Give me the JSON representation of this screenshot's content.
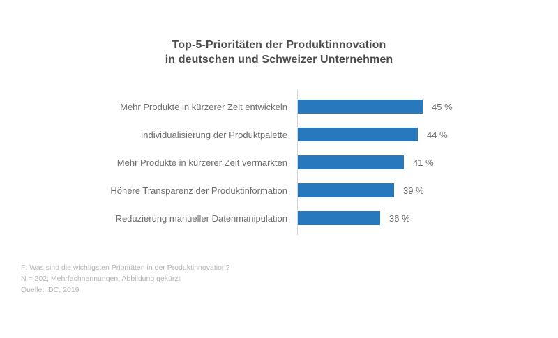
{
  "chart_data": {
    "type": "bar",
    "orientation": "horizontal",
    "title": "Top-5-Prioritäten der Produktinnovation in deutschen und Schweizer Unternehmen",
    "title_lines": [
      "Top-5-Prioritäten der Produktinnovation",
      "in deutschen und Schweizer Unternehmen"
    ],
    "categories": [
      "Mehr Produkte in kürzerer Zeit entwickeln",
      "Individualisierung der Produktpalette",
      "Mehr Produkte in kürzerer Zeit vermarkten",
      "Höhere Transparenz der Produktinformation",
      "Reduzierung manueller Datenmanipulation"
    ],
    "values": [
      45,
      44,
      41,
      39,
      36
    ],
    "value_labels": [
      "45 %",
      "44 %",
      "41 %",
      "39 %",
      "36 %"
    ],
    "unit": "%",
    "bar_color": "#2878be",
    "axis_baseline_color": "#d6d6d6",
    "xlabel": "",
    "ylabel": "",
    "grid": "off",
    "legend": "none",
    "axis_note": "x-axis truncated, bars not zero-based (Abbildung gekürzt)",
    "x_baseline_value": 18.6,
    "x_max_value": 45
  },
  "footnotes": [
    "F: Was sind die wichtigsten Prioritäten in der Produktinnovation?",
    "N = 202; Mehrfachnennungen; Abbildung gekürzt",
    "Quelle: IDC, 2019"
  ]
}
